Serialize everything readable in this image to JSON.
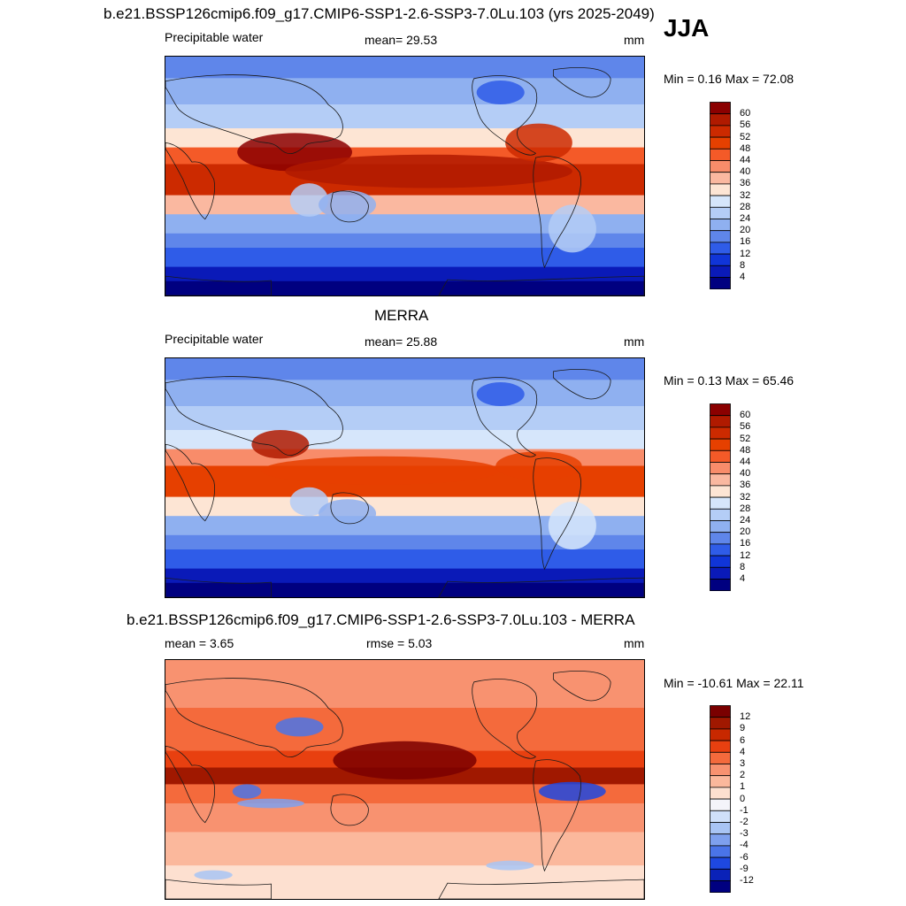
{
  "season": "JJA",
  "panels": [
    {
      "title": "b.e21.BSSP126cmip6.f09_g17.CMIP6-SSP1-2.6-SSP3-7.0Lu.103 (yrs 2025-2049)",
      "left_label": "Precipitable water",
      "center_label": "mean=  29.53",
      "units": "mm",
      "minmax": "Min =   0.16 Max =  72.08",
      "colorbar_labels": [
        "60",
        "56",
        "52",
        "48",
        "44",
        "40",
        "36",
        "32",
        "28",
        "24",
        "20",
        "16",
        "12",
        "8",
        "4"
      ],
      "colors": [
        "#8b0000",
        "#b01a00",
        "#cc2a00",
        "#e64000",
        "#f45a28",
        "#f88c6a",
        "#fab8a0",
        "#fde5d4",
        "#d6e6fb",
        "#b4cdf6",
        "#8fb0f0",
        "#5f86ea",
        "#2f5ce8",
        "#1035d8",
        "#0a1ab8",
        "#000080"
      ]
    },
    {
      "title": "MERRA",
      "left_label": "Precipitable water",
      "center_label": "mean=  25.88",
      "units": "mm",
      "minmax": "Min =   0.13 Max =  65.46",
      "colorbar_labels": [
        "60",
        "56",
        "52",
        "48",
        "44",
        "40",
        "36",
        "32",
        "28",
        "24",
        "20",
        "16",
        "12",
        "8",
        "4"
      ],
      "colors": [
        "#8b0000",
        "#b01a00",
        "#cc2a00",
        "#e64000",
        "#f45a28",
        "#f88c6a",
        "#fab8a0",
        "#fde5d4",
        "#d6e6fb",
        "#b4cdf6",
        "#8fb0f0",
        "#5f86ea",
        "#2f5ce8",
        "#1035d8",
        "#0a1ab8",
        "#000080"
      ]
    },
    {
      "title": "b.e21.BSSP126cmip6.f09_g17.CMIP6-SSP1-2.6-SSP3-7.0Lu.103 - MERRA",
      "left_label": "mean =   3.65",
      "center_label": "rmse =   5.03",
      "units": "mm",
      "minmax": "Min = -10.61 Max =  22.11",
      "colorbar_labels": [
        "12",
        "9",
        "6",
        "4",
        "3",
        "2",
        "1",
        "0",
        "-1",
        "-2",
        "-3",
        "-4",
        "-6",
        "-9",
        "-12"
      ],
      "colors": [
        "#7a0000",
        "#a01800",
        "#c82800",
        "#e84010",
        "#f46a3c",
        "#f89270",
        "#fbb89c",
        "#fde0d0",
        "#f4f4fa",
        "#cfe0fa",
        "#a8c4f4",
        "#7ea0ee",
        "#4a74e8",
        "#1e48e0",
        "#0a22b8",
        "#000080"
      ]
    }
  ]
}
